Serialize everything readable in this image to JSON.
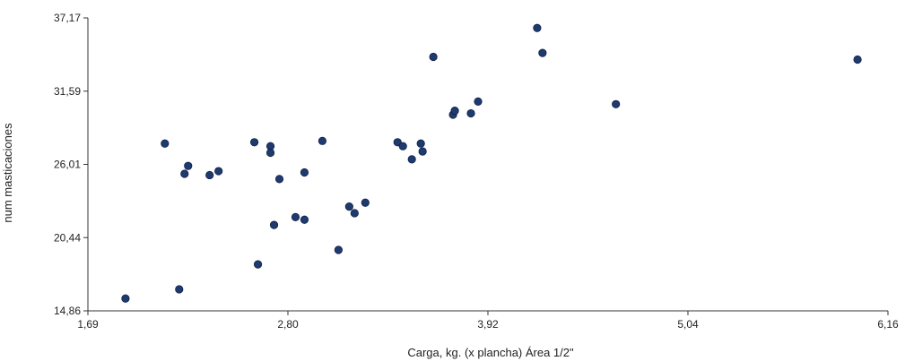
{
  "chart_data": {
    "type": "scatter",
    "title": "",
    "xlabel": "Carga, kg.  (x plancha) Área 1/2\"",
    "ylabel": "num masticaciones",
    "xlim": [
      1.69,
      6.16
    ],
    "ylim": [
      14.86,
      37.17
    ],
    "x_ticks": [
      "1,69",
      "2,80",
      "3,92",
      "5,04",
      "6,16"
    ],
    "y_ticks": [
      "14,86",
      "20,44",
      "26,01",
      "31,59",
      "37,17"
    ],
    "grid": false,
    "marker_color": "#1f3a6e",
    "points": [
      {
        "x": 1.9,
        "y": 15.8
      },
      {
        "x": 2.12,
        "y": 27.6
      },
      {
        "x": 2.2,
        "y": 16.5
      },
      {
        "x": 2.23,
        "y": 25.3
      },
      {
        "x": 2.25,
        "y": 25.9
      },
      {
        "x": 2.37,
        "y": 25.2
      },
      {
        "x": 2.42,
        "y": 25.5
      },
      {
        "x": 2.62,
        "y": 27.7
      },
      {
        "x": 2.64,
        "y": 18.4
      },
      {
        "x": 2.71,
        "y": 27.4
      },
      {
        "x": 2.71,
        "y": 26.9
      },
      {
        "x": 2.73,
        "y": 21.4
      },
      {
        "x": 2.76,
        "y": 24.9
      },
      {
        "x": 2.85,
        "y": 22.0
      },
      {
        "x": 2.9,
        "y": 25.4
      },
      {
        "x": 2.9,
        "y": 21.8
      },
      {
        "x": 3.0,
        "y": 27.8
      },
      {
        "x": 3.09,
        "y": 19.5
      },
      {
        "x": 3.15,
        "y": 22.8
      },
      {
        "x": 3.18,
        "y": 22.3
      },
      {
        "x": 3.24,
        "y": 23.1
      },
      {
        "x": 3.42,
        "y": 27.7
      },
      {
        "x": 3.45,
        "y": 27.4
      },
      {
        "x": 3.5,
        "y": 26.4
      },
      {
        "x": 3.55,
        "y": 27.6
      },
      {
        "x": 3.56,
        "y": 27.0
      },
      {
        "x": 3.62,
        "y": 34.2
      },
      {
        "x": 3.73,
        "y": 29.8
      },
      {
        "x": 3.74,
        "y": 30.1
      },
      {
        "x": 3.83,
        "y": 29.9
      },
      {
        "x": 3.87,
        "y": 30.8
      },
      {
        "x": 4.2,
        "y": 36.4
      },
      {
        "x": 4.23,
        "y": 34.5
      },
      {
        "x": 4.64,
        "y": 30.6
      },
      {
        "x": 5.99,
        "y": 34.0
      }
    ]
  }
}
